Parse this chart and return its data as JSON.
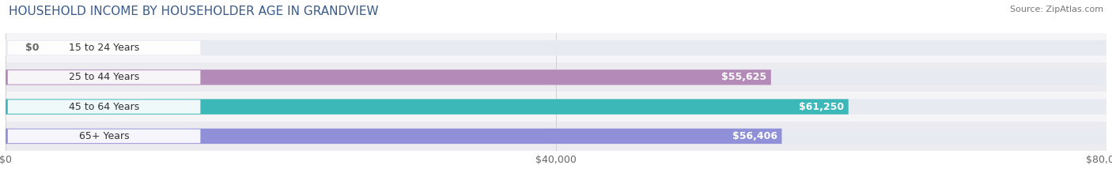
{
  "title": "HOUSEHOLD INCOME BY HOUSEHOLDER AGE IN GRANDVIEW",
  "source": "Source: ZipAtlas.com",
  "categories": [
    "15 to 24 Years",
    "25 to 44 Years",
    "45 to 64 Years",
    "65+ Years"
  ],
  "values": [
    0,
    55625,
    61250,
    56406
  ],
  "labels": [
    "$0",
    "$55,625",
    "$61,250",
    "$56,406"
  ],
  "bar_colors": [
    "#a8cce0",
    "#b48ab8",
    "#3db8b8",
    "#9090d8"
  ],
  "bar_bg_color": "#e8eaf2",
  "row_bg_colors": [
    "#f5f5f8",
    "#ebebf0"
  ],
  "xlim": [
    0,
    80000
  ],
  "xticks": [
    0,
    40000,
    80000
  ],
  "xtick_labels": [
    "$0",
    "$40,000",
    "$80,000"
  ],
  "title_fontsize": 11,
  "source_fontsize": 8,
  "label_fontsize": 9,
  "tick_fontsize": 9,
  "cat_fontsize": 9,
  "bar_height": 0.52,
  "figsize": [
    14.06,
    2.33
  ],
  "dpi": 100
}
